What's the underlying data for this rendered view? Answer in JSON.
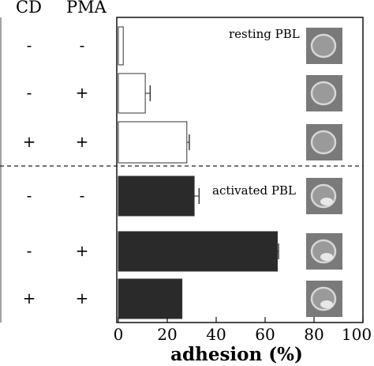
{
  "header": {
    "col1": "CD",
    "col2": "PMA"
  },
  "legend_labels": {
    "resting": "resting PBL",
    "activated": "activated PBL"
  },
  "rows": [
    {
      "cd": "-",
      "pma": "-"
    },
    {
      "cd": "-",
      "pma": "+"
    },
    {
      "cd": "+",
      "pma": "+"
    },
    {
      "cd": "-",
      "pma": "-"
    },
    {
      "cd": "-",
      "pma": "+"
    },
    {
      "cd": "+",
      "pma": "+"
    }
  ],
  "chart_data": {
    "type": "bar",
    "orientation": "horizontal",
    "xlabel": "adhesion (%)",
    "xlim": [
      0,
      100
    ],
    "xticks": [
      "0",
      "20",
      "40",
      "60",
      "80",
      "100"
    ],
    "series": [
      {
        "name": "resting PBL",
        "values": [
          2,
          11,
          28
        ],
        "errors": [
          0,
          2,
          1
        ]
      },
      {
        "name": "activated PBL",
        "values": [
          31,
          65,
          26
        ],
        "errors": [
          2,
          0.5,
          0
        ]
      }
    ],
    "colors": {
      "resting": "#ffffff",
      "activated": "#2a2a2a"
    }
  }
}
